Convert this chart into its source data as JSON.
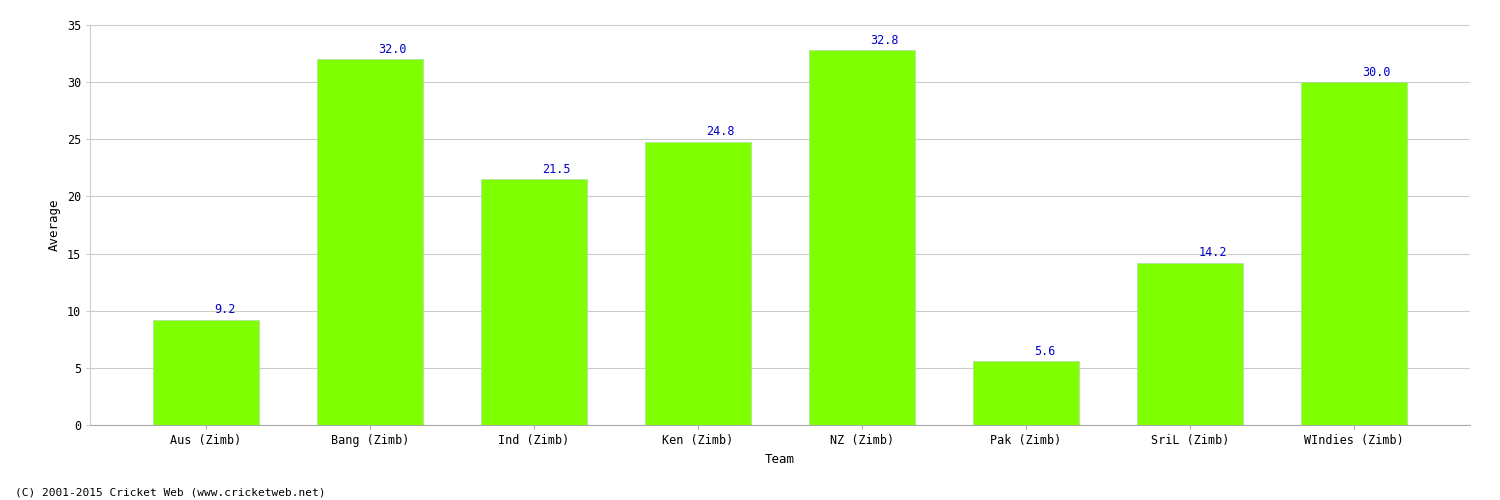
{
  "categories": [
    "Aus (Zimb)",
    "Bang (Zimb)",
    "Ind (Zimb)",
    "Ken (Zimb)",
    "NZ (Zimb)",
    "Pak (Zimb)",
    "SriL (Zimb)",
    "WIndies (Zimb)"
  ],
  "values": [
    9.2,
    32.0,
    21.5,
    24.8,
    32.8,
    5.6,
    14.2,
    30.0
  ],
  "bar_color": "#7fff00",
  "bar_edge_color": "#aaddaa",
  "label_color": "#0000cc",
  "ylabel": "Average",
  "xlabel": "Team",
  "ylim": [
    0,
    35
  ],
  "yticks": [
    0,
    5,
    10,
    15,
    20,
    25,
    30,
    35
  ],
  "grid_color": "#cccccc",
  "background_color": "#ffffff",
  "label_fontsize": 8.5,
  "axis_label_fontsize": 9,
  "tick_fontsize": 8.5,
  "footer": "(C) 2001-2015 Cricket Web (www.cricketweb.net)",
  "footer_fontsize": 8,
  "bar_width": 0.65
}
